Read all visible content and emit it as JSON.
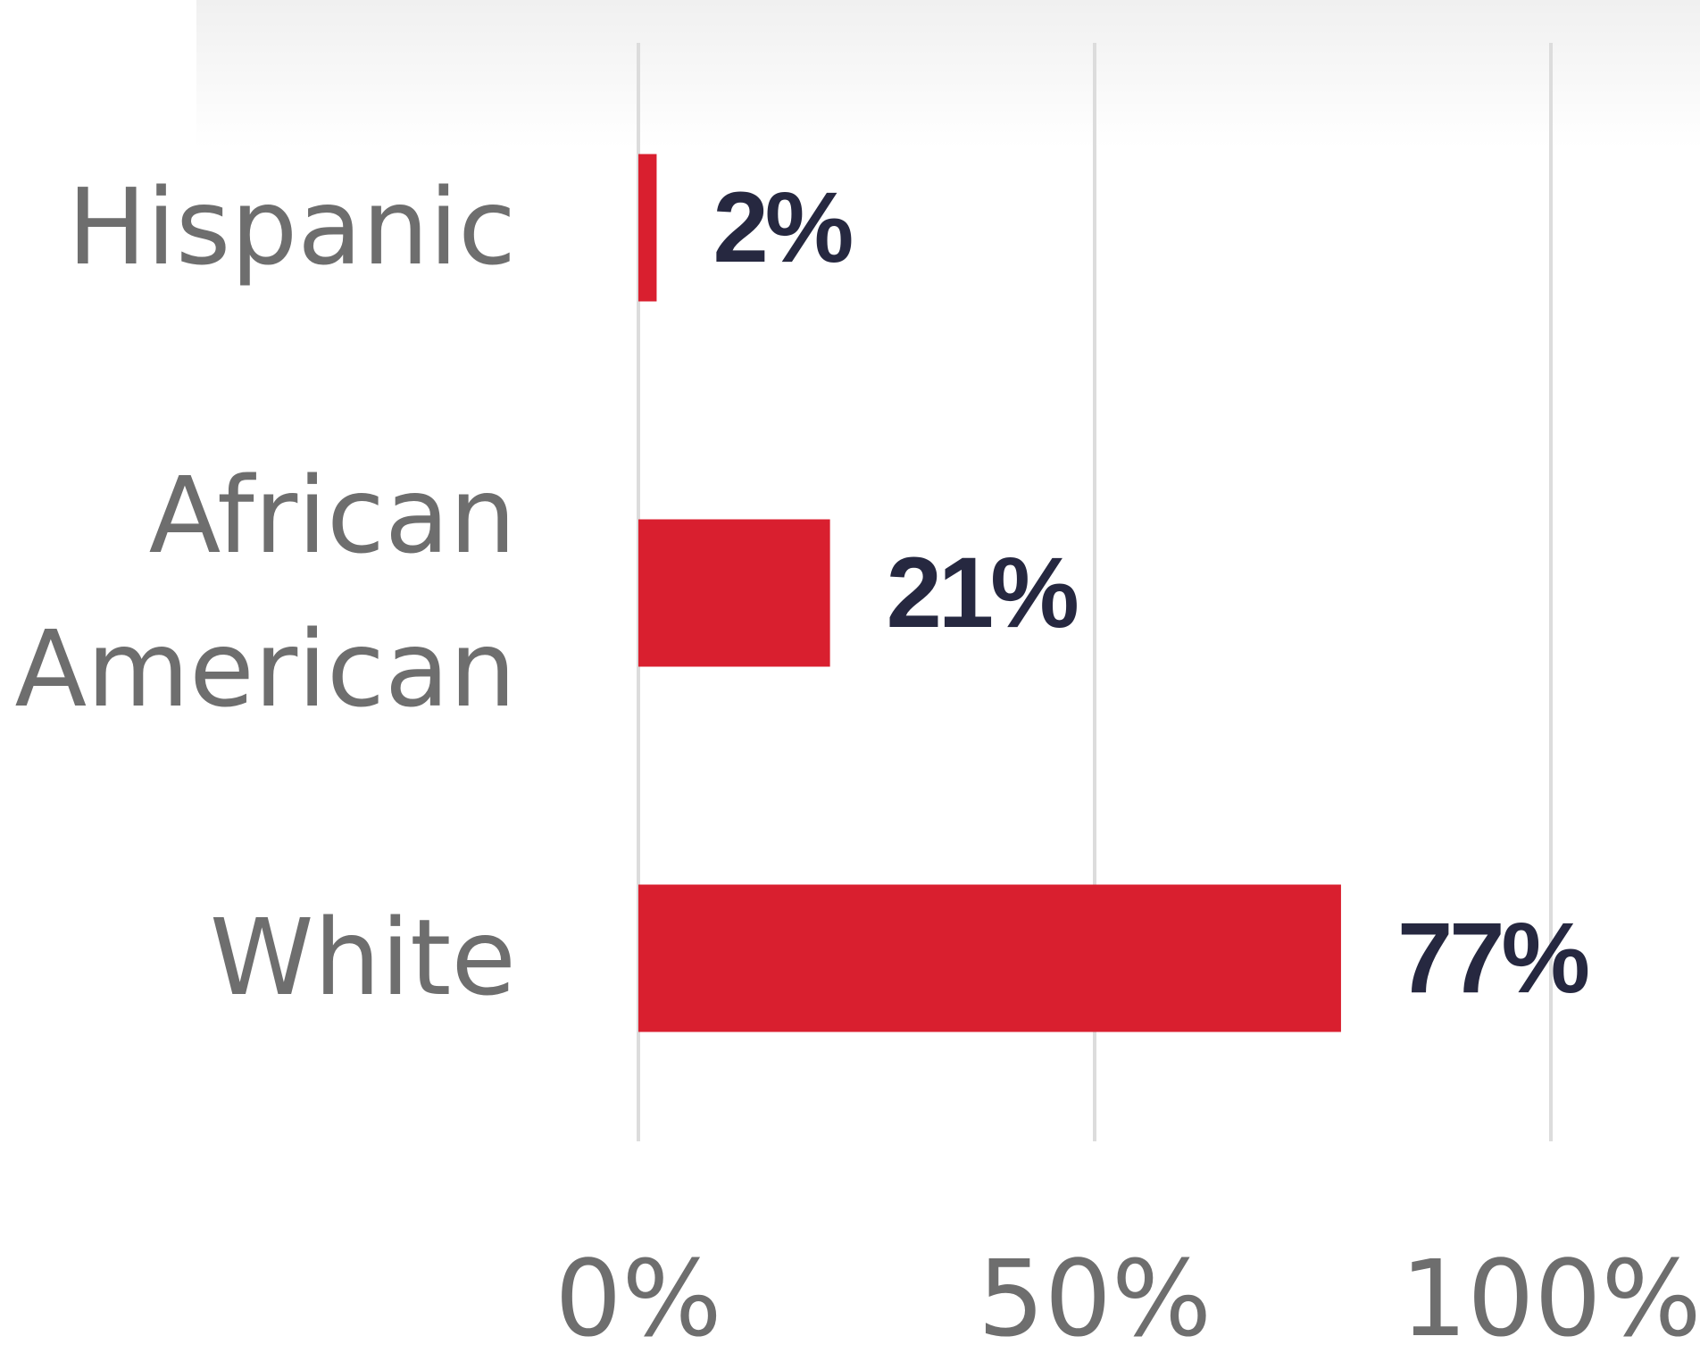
{
  "chart_data": {
    "type": "bar",
    "orientation": "horizontal",
    "categories": [
      "Hispanic",
      "African American",
      "White"
    ],
    "category_lines": [
      [
        "Hispanic"
      ],
      [
        "African",
        "American"
      ],
      [
        "White"
      ]
    ],
    "values": [
      2,
      21,
      77
    ],
    "value_labels": [
      "2%",
      "21%",
      "77%"
    ],
    "xlim": [
      0,
      100
    ],
    "x_ticks": [
      0,
      50,
      100
    ],
    "x_tick_labels": [
      "0%",
      "50%",
      "100%"
    ],
    "grid": "vertical",
    "title": "",
    "xlabel": "",
    "ylabel": "",
    "colors": {
      "bar": "#d91f2f",
      "value_label": "#262840",
      "grid": "#dcdcdc",
      "text": "#6e6e6e"
    }
  }
}
